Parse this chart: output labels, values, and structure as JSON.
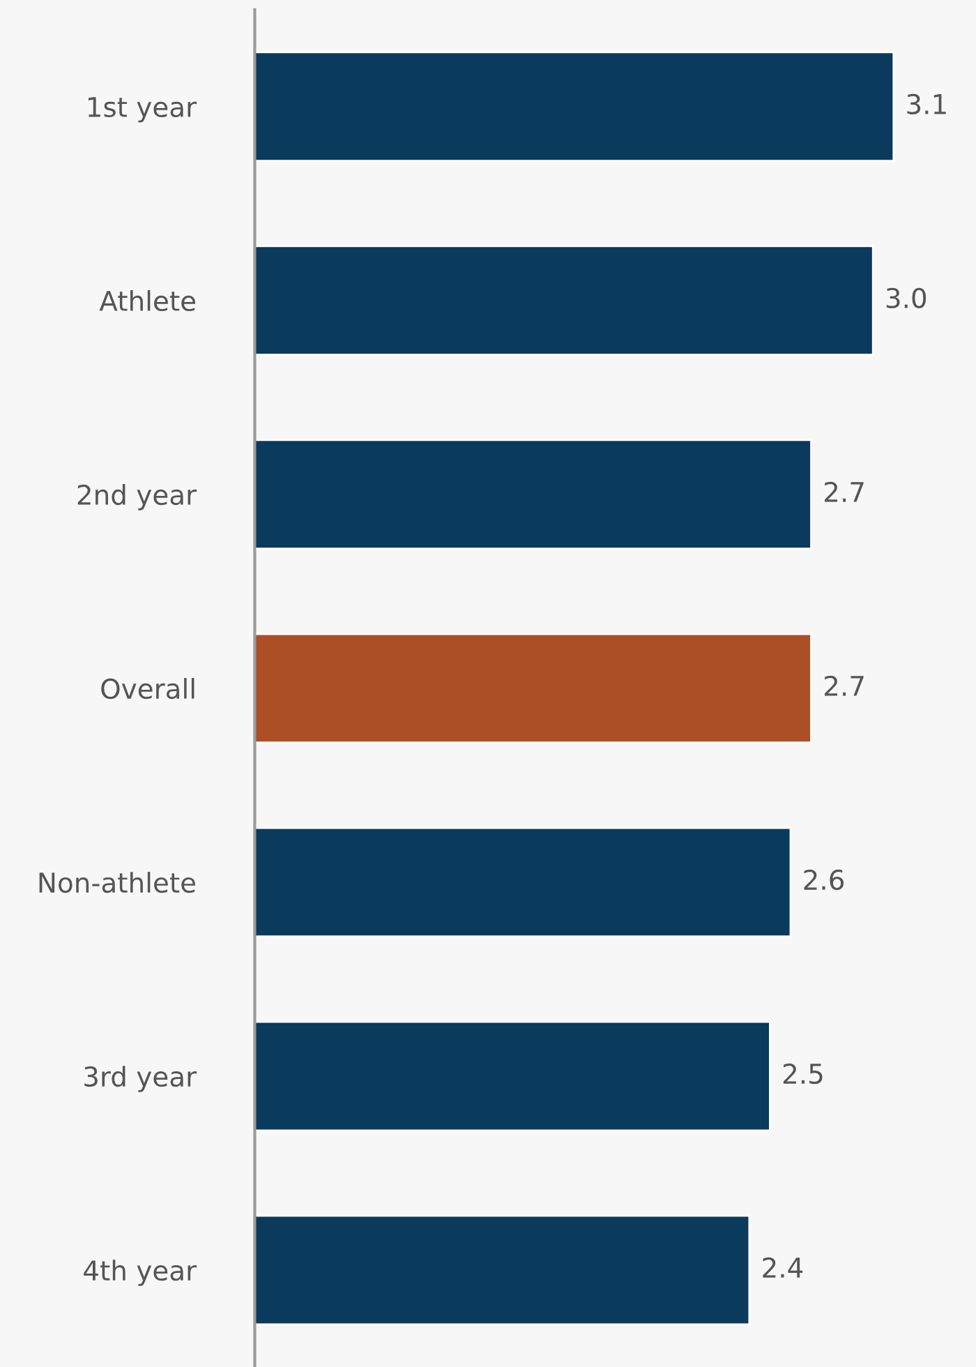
{
  "chart_data": {
    "type": "bar",
    "orientation": "horizontal",
    "categories": [
      "1st year",
      "Athlete",
      "2nd year",
      "Overall",
      "Non-athlete",
      "3rd year",
      "4th year"
    ],
    "values": [
      3.1,
      3.0,
      2.7,
      2.7,
      2.6,
      2.5,
      2.4
    ],
    "colors": [
      "#0a3a5c",
      "#0a3a5c",
      "#0a3a5c",
      "#ad4f26",
      "#0a3a5c",
      "#0a3a5c",
      "#0a3a5c"
    ],
    "value_labels": [
      "3.1",
      "3.0",
      "2.7",
      "2.7",
      "2.6",
      "2.5",
      "2.4"
    ],
    "xlim": [
      0,
      3.5
    ],
    "tick_labels": "y",
    "grid": false,
    "legend": false
  }
}
